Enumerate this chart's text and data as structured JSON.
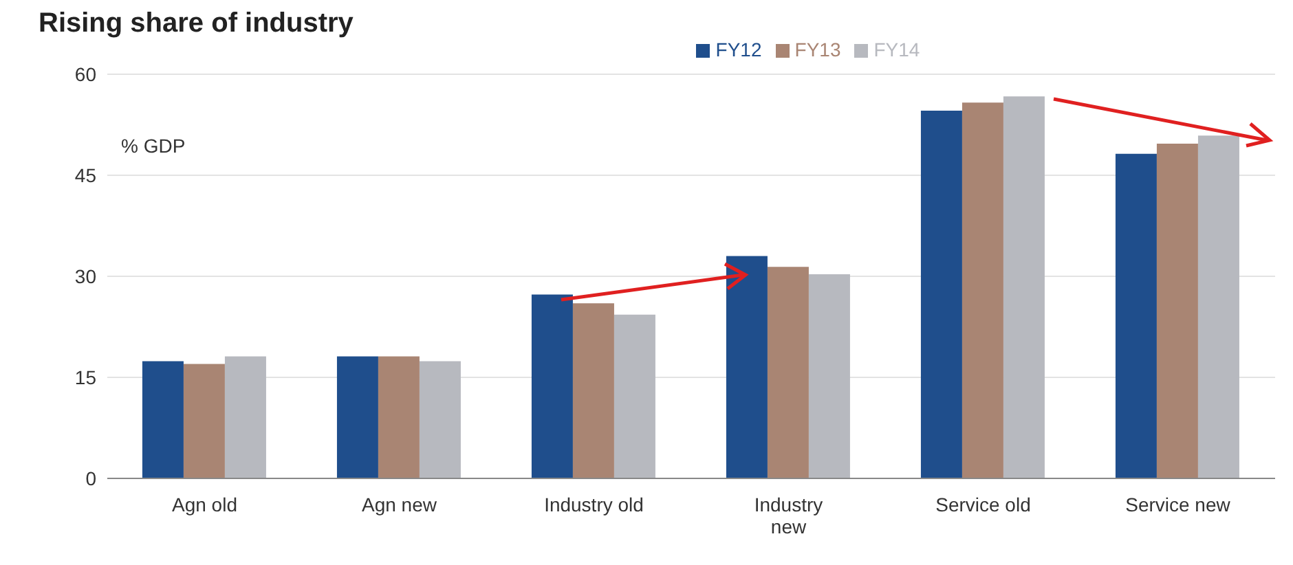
{
  "chart_data": {
    "type": "bar",
    "title": "Rising share of industry",
    "ylabel": "% GDP",
    "categories": [
      "Agn old",
      "Agn new",
      "Industry old",
      "Industry\nnew",
      "Service old",
      "Service new"
    ],
    "series": [
      {
        "name": "FY12",
        "color": "#1f4e8c",
        "values": [
          17.4,
          18.1,
          27.3,
          33.0,
          54.6,
          48.2
        ]
      },
      {
        "name": "FY13",
        "color": "#a98573",
        "values": [
          17.0,
          18.1,
          26.0,
          31.4,
          55.8,
          49.7
        ]
      },
      {
        "name": "FY14",
        "color": "#b7b9bf",
        "values": [
          18.1,
          17.4,
          24.3,
          30.3,
          56.7,
          50.9
        ]
      }
    ],
    "ylim": [
      0,
      60
    ],
    "yticks": [
      0,
      15,
      30,
      45,
      60
    ],
    "grid": "y",
    "legend": "top"
  }
}
